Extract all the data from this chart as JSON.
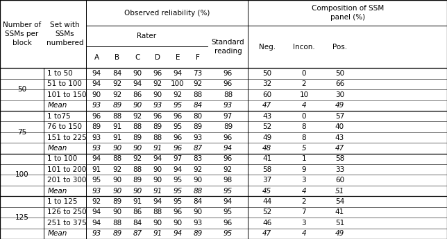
{
  "rows": [
    [
      "50",
      "1 to 50",
      "94",
      "84",
      "90",
      "96",
      "94",
      "73",
      "96",
      "50",
      "0",
      "50"
    ],
    [
      "",
      "51 to 100",
      "94",
      "92",
      "94",
      "92",
      "100",
      "92",
      "96",
      "32",
      "2",
      "66"
    ],
    [
      "",
      "101 to 150",
      "90",
      "92",
      "86",
      "90",
      "92",
      "88",
      "88",
      "60",
      "10",
      "30"
    ],
    [
      "",
      "Mean",
      "93",
      "89",
      "90",
      "93",
      "95",
      "84",
      "93",
      "47",
      "4",
      "49"
    ],
    [
      "75",
      "1 to75",
      "96",
      "88",
      "92",
      "96",
      "96",
      "80",
      "97",
      "43",
      "0",
      "57"
    ],
    [
      "",
      "76 to 150",
      "89",
      "91",
      "88",
      "89",
      "95",
      "89",
      "89",
      "52",
      "8",
      "40"
    ],
    [
      "",
      "151 to 225",
      "93",
      "91",
      "89",
      "88",
      "96",
      "93",
      "96",
      "49",
      "8",
      "43"
    ],
    [
      "",
      "Mean",
      "93",
      "90",
      "90",
      "91",
      "96",
      "87",
      "94",
      "48",
      "5",
      "47"
    ],
    [
      "100",
      "1 to 100",
      "94",
      "88",
      "92",
      "94",
      "97",
      "83",
      "96",
      "41",
      "1",
      "58"
    ],
    [
      "",
      "101 to 200",
      "91",
      "92",
      "88",
      "90",
      "94",
      "92",
      "92",
      "58",
      "9",
      "33"
    ],
    [
      "",
      "201 to 300",
      "95",
      "90",
      "89",
      "90",
      "95",
      "90",
      "98",
      "37",
      "3",
      "60"
    ],
    [
      "",
      "Mean",
      "93",
      "90",
      "90",
      "91",
      "95",
      "88",
      "95",
      "45",
      "4",
      "51"
    ],
    [
      "125",
      "1 to 125",
      "92",
      "89",
      "91",
      "94",
      "95",
      "84",
      "94",
      "44",
      "2",
      "54"
    ],
    [
      "",
      "126 to 250",
      "94",
      "90",
      "86",
      "88",
      "96",
      "90",
      "95",
      "52",
      "7",
      "41"
    ],
    [
      "",
      "251 to 375",
      "94",
      "88",
      "84",
      "90",
      "90",
      "93",
      "96",
      "46",
      "3",
      "51"
    ],
    [
      "",
      "Mean",
      "93",
      "89",
      "87",
      "91",
      "94",
      "89",
      "95",
      "47",
      "4",
      "49"
    ]
  ],
  "mean_rows": [
    3,
    7,
    11,
    15
  ],
  "group_label_rows": [
    0,
    4,
    8,
    12
  ],
  "group_separators": [
    4,
    8,
    12
  ],
  "font_size": 7.5
}
